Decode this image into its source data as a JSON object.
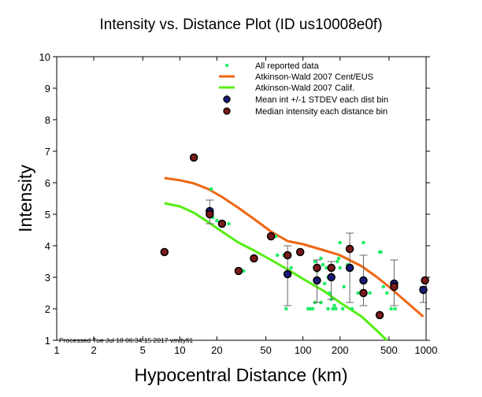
{
  "chart_data": {
    "type": "scatter",
    "title": "Intensity vs. Distance Plot (ID us10008e0f)",
    "xlabel": "Hypocentral Distance (km)",
    "ylabel": "Intensity",
    "xscale": "log",
    "xlim": [
      1,
      1000
    ],
    "ylim": [
      1,
      10
    ],
    "xticks": [
      "1",
      "2",
      "5",
      "10",
      "20",
      "50",
      "100",
      "200",
      "500",
      "1000"
    ],
    "xtick_values": [
      1,
      2,
      5,
      10,
      20,
      50,
      100,
      200,
      500,
      1000
    ],
    "yticks": [
      "1",
      "2",
      "3",
      "4",
      "5",
      "6",
      "7",
      "8",
      "9",
      "10"
    ],
    "grid": false,
    "legend_position": "top-right",
    "processed_note": "Processed Tue Jul 18 06:34:15 2017 vmdyfi1",
    "colors": {
      "reported": "#22ee66",
      "cent_eus": "#ee6611",
      "calif": "#55ee11",
      "mean": "#1a1a7a",
      "median": "#7a1a1a",
      "errorbar": "#666666"
    },
    "legend": [
      {
        "label": "All reported data",
        "kind": "dot"
      },
      {
        "label": "Atkinson-Wald 2007 Cent/EUS",
        "kind": "line-orange"
      },
      {
        "label": "Atkinson-Wald 2007 Calif.",
        "kind": "line-green"
      },
      {
        "label": "Mean int +/-1 STDEV each dist bin",
        "kind": "mean"
      },
      {
        "label": "Median intensity each distance bin",
        "kind": "median"
      }
    ],
    "series": [
      {
        "name": "Atkinson-Wald 2007 Cent/EUS",
        "type": "line",
        "x": [
          7.5,
          10,
          13,
          17,
          22,
          30,
          40,
          55,
          75,
          100,
          150,
          200,
          300,
          400,
          500,
          700,
          950
        ],
        "y": [
          6.15,
          6.08,
          5.98,
          5.8,
          5.55,
          5.2,
          4.85,
          4.45,
          4.15,
          4.05,
          3.85,
          3.7,
          3.35,
          3.0,
          2.7,
          2.2,
          1.75
        ]
      },
      {
        "name": "Atkinson-Wald 2007 Calif.",
        "type": "line",
        "x": [
          7.5,
          10,
          13,
          17,
          22,
          30,
          40,
          55,
          75,
          100,
          150,
          200,
          300,
          400,
          480
        ],
        "y": [
          5.35,
          5.25,
          5.05,
          4.75,
          4.45,
          4.1,
          3.85,
          3.55,
          3.25,
          2.95,
          2.55,
          2.2,
          1.75,
          1.3,
          1.0
        ]
      },
      {
        "name": "All reported data",
        "type": "scatter",
        "x": [
          18,
          18.5,
          20,
          25,
          33,
          60,
          73,
          62,
          80,
          70,
          120,
          125,
          130,
          140,
          145,
          150,
          155,
          160,
          165,
          170,
          175,
          180,
          185,
          190,
          195,
          200,
          210,
          230,
          110,
          115,
          125,
          140,
          160,
          170,
          200,
          215,
          250,
          280,
          300,
          310,
          350,
          420,
          430,
          450,
          480,
          520,
          560,
          540
        ],
        "y": [
          5.8,
          4.9,
          4.8,
          4.7,
          3.2,
          4.3,
          2.0,
          3.7,
          3.3,
          3.7,
          2.0,
          3.5,
          3.2,
          3.6,
          3.4,
          2.8,
          3.3,
          3.0,
          2.5,
          2.3,
          2.0,
          2.1,
          2.0,
          3.5,
          3.6,
          3.3,
          2.0,
          3.4,
          2.0,
          2.0,
          2.2,
          2.2,
          2.0,
          3.3,
          4.1,
          2.7,
          2.0,
          2.5,
          2.9,
          4.1,
          2.5,
          3.8,
          3.8,
          2.7,
          2.5,
          2.0,
          2.0,
          2.7
        ]
      },
      {
        "name": "Mean int +/-1 STDEV each dist bin",
        "type": "errorbar",
        "x": [
          17.5,
          75,
          130,
          170,
          240,
          310,
          550,
          950
        ],
        "y": [
          5.1,
          3.1,
          2.9,
          3.0,
          3.3,
          2.9,
          2.8,
          2.6
        ],
        "yerr_low": [
          4.7,
          2.1,
          2.2,
          2.3,
          2.2,
          2.1,
          2.1,
          2.2
        ],
        "yerr_high": [
          5.45,
          4.0,
          3.55,
          3.5,
          4.4,
          3.7,
          3.55,
          2.7
        ]
      },
      {
        "name": "Median intensity each distance bin",
        "type": "scatter",
        "x": [
          7.5,
          13,
          17.5,
          22,
          30,
          40,
          55,
          75,
          95,
          130,
          170,
          240,
          310,
          420,
          550,
          980
        ],
        "y": [
          3.8,
          6.8,
          5.0,
          4.7,
          3.2,
          3.6,
          4.3,
          3.7,
          3.8,
          3.3,
          3.3,
          3.9,
          2.5,
          1.8,
          2.7,
          2.9
        ]
      }
    ]
  }
}
